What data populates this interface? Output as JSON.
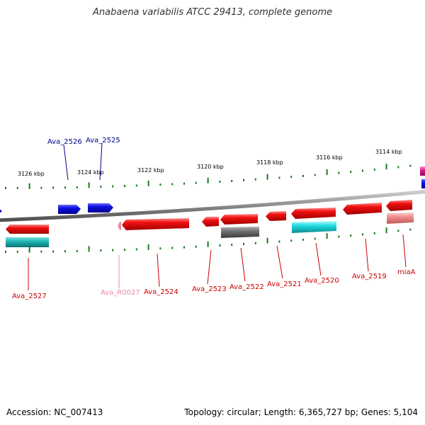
{
  "title": "Anabaena variabilis ATCC 29413, complete genome",
  "accession_text": "Accession: NC_007413",
  "summary_text": "Topology: circular; Length: 6,365,727 bp; Genes: 5,104",
  "colors": {
    "forward_cds": "#1010e0",
    "reverse_cds": "#ee0d0d",
    "rna": "#f08caa",
    "backbone": "#8a8a8a",
    "tick": "#1a7a1a",
    "label_blue": "#00008b",
    "label_red": "#cc0000",
    "label_pink": "#e88aa0",
    "annotation_cyan": "#20d0d8",
    "annotation_gray": "#707070",
    "annotation_pink": "#f08c8c",
    "annotation_magenta": "#e0208a"
  },
  "scale_labels": [
    "3126 kbp",
    "3124 kbp",
    "3122 kbp",
    "3120 kbp",
    "3118 kbp",
    "3116 kbp",
    "3114 kbp"
  ],
  "genes": [
    {
      "name": "Ava_2526",
      "strand": "forward",
      "type": "CDS",
      "label_color": "label_blue"
    },
    {
      "name": "Ava_2525",
      "strand": "forward",
      "type": "CDS",
      "label_color": "label_blue"
    },
    {
      "name": "Ava_2527",
      "strand": "reverse",
      "type": "CDS",
      "label_color": "label_red"
    },
    {
      "name": "Ava_R0027",
      "strand": "reverse",
      "type": "RNA",
      "label_color": "label_pink"
    },
    {
      "name": "Ava_2524",
      "strand": "reverse",
      "type": "CDS",
      "label_color": "label_red"
    },
    {
      "name": "Ava_2523",
      "strand": "reverse",
      "type": "CDS",
      "label_color": "label_red"
    },
    {
      "name": "Ava_2522",
      "strand": "reverse",
      "type": "CDS",
      "label_color": "label_red"
    },
    {
      "name": "Ava_2521",
      "strand": "reverse",
      "type": "CDS",
      "label_color": "label_red"
    },
    {
      "name": "Ava_2520",
      "strand": "reverse",
      "type": "CDS",
      "label_color": "label_red"
    },
    {
      "name": "Ava_2519",
      "strand": "reverse",
      "type": "CDS",
      "label_color": "label_red"
    },
    {
      "name": "miaA",
      "strand": "reverse",
      "type": "CDS",
      "label_color": "label_red"
    }
  ]
}
